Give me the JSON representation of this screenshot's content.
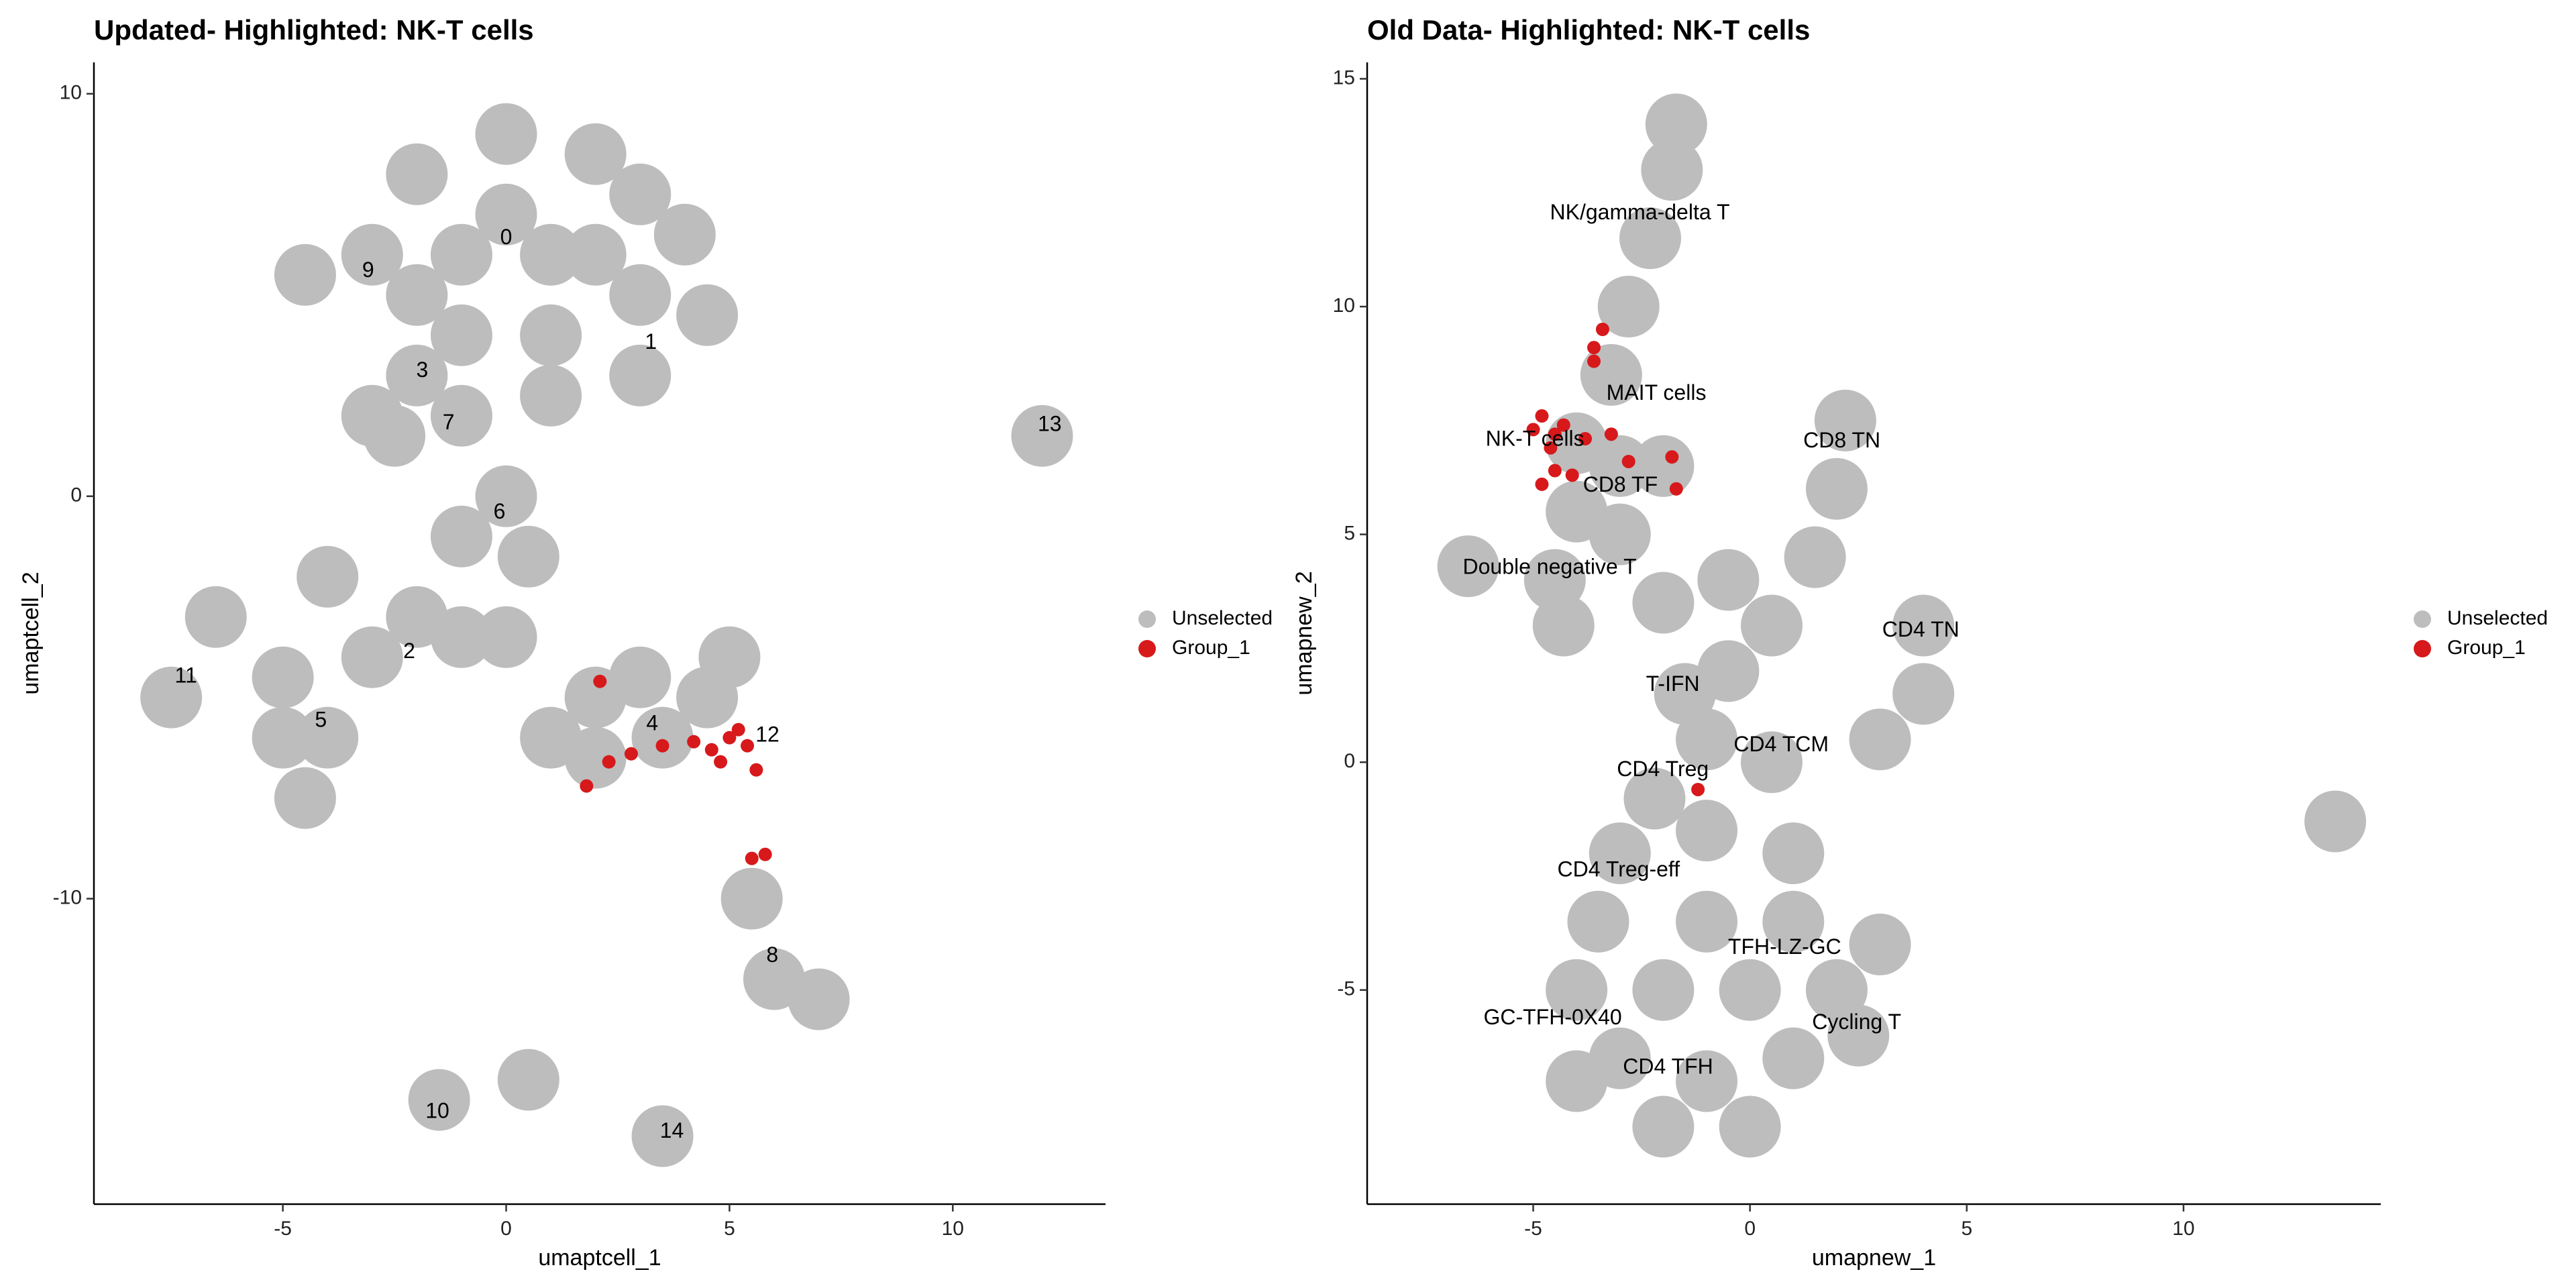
{
  "chart_data": [
    {
      "type": "scatter",
      "title": "Updated- Highlighted: NK-T cells",
      "x_label": "umaptcell_1",
      "y_label": "umaptcell_2",
      "xlim": [
        -9.23,
        13.42
      ],
      "ylim": [
        -17.59,
        10.78
      ],
      "xticks": [
        -5,
        0,
        5,
        10
      ],
      "yticks": [
        10,
        0,
        -10
      ],
      "legend": "right",
      "series": [
        {
          "name": "Unselected",
          "color": "#bdbdbd",
          "x": [
            -2,
            0,
            2,
            4,
            4.5,
            3,
            1,
            -1,
            -2,
            -3,
            -4.5,
            1,
            3,
            -2,
            -1,
            -2.5,
            0,
            -1,
            0.5,
            -2,
            -3,
            -1,
            0,
            -4,
            -4,
            -5,
            -4.5,
            -6.5,
            -7.5,
            2,
            3,
            3.5,
            2,
            4.5,
            5,
            5.5,
            6,
            7,
            -1.5,
            0.5,
            12,
            3.5,
            0,
            2,
            3,
            -1,
            -3,
            1,
            -5,
            1
          ],
          "y": [
            8,
            9,
            8.5,
            6.5,
            4.5,
            3,
            6,
            6,
            5,
            6,
            5.5,
            4,
            5,
            3,
            2,
            1.5,
            0,
            -1,
            -1.5,
            -3,
            -4,
            -3.5,
            -3.5,
            -2,
            -6,
            -6,
            -7.5,
            -3,
            -5,
            -5,
            -4.5,
            -6,
            -6.5,
            -5,
            -4,
            -10,
            -12,
            -12.5,
            -15,
            -14.5,
            1.5,
            -15.9,
            7,
            6,
            7.5,
            4,
            2,
            2.5,
            -4.5,
            -6
          ]
        },
        {
          "name": "Group_1",
          "color": "#d7191c",
          "x": [
            5.4,
            5,
            4.6,
            5.6,
            4.2,
            3.5,
            2.8,
            2.3,
            1.8,
            5.5,
            5.8,
            2.1,
            5.2,
            4.8
          ],
          "y": [
            -6.2,
            -6,
            -6.3,
            -6.8,
            -6.1,
            -6.2,
            -6.4,
            -6.6,
            -7.2,
            -9,
            -8.9,
            -4.6,
            -5.8,
            -6.6
          ]
        }
      ],
      "annotations": [
        {
          "text": "0",
          "x": 0,
          "y": 6.4
        },
        {
          "text": "9",
          "x": -3.09,
          "y": 5.59
        },
        {
          "text": "1",
          "x": 3.24,
          "y": 3.8
        },
        {
          "text": "3",
          "x": -1.88,
          "y": 3.1
        },
        {
          "text": "7",
          "x": -1.29,
          "y": 1.8
        },
        {
          "text": "13",
          "x": 12.17,
          "y": 1.76
        },
        {
          "text": "6",
          "x": -0.15,
          "y": -0.41
        },
        {
          "text": "2",
          "x": -2.17,
          "y": -3.88
        },
        {
          "text": "11",
          "x": -7.17,
          "y": -4.49
        },
        {
          "text": "4",
          "x": 3.27,
          "y": -5.67
        },
        {
          "text": "12",
          "x": 5.85,
          "y": -5.96
        },
        {
          "text": "5",
          "x": -4.15,
          "y": -5.59
        },
        {
          "text": "8",
          "x": 5.96,
          "y": -11.43
        },
        {
          "text": "10",
          "x": -1.54,
          "y": -15.31
        },
        {
          "text": "14",
          "x": 3.71,
          "y": -15.8
        }
      ]
    },
    {
      "type": "scatter",
      "title": "Old Data- Highlighted: NK-T cells",
      "x_label": "umapnew_1",
      "y_label": "umapnew_2",
      "xlim": [
        -8.83,
        14.55
      ],
      "ylim": [
        -9.7,
        15.36
      ],
      "xticks": [
        -5,
        0,
        5,
        10
      ],
      "yticks": [
        15,
        10,
        5,
        0,
        -5
      ],
      "legend": "right",
      "series": [
        {
          "name": "Unselected",
          "color": "#bdbdbd",
          "x": [
            -1.7,
            -1.8,
            -2.3,
            -2.8,
            -3.2,
            -4,
            -3,
            -2,
            -4,
            -3,
            -6.5,
            -4.5,
            -4.3,
            2.2,
            2,
            1.5,
            4,
            4,
            3,
            0.5,
            -0.5,
            -1.5,
            -1,
            0.5,
            -2.2,
            -3,
            -1,
            1,
            -3.5,
            -1,
            1,
            3,
            -4,
            -2,
            0,
            2,
            -3,
            -1,
            1,
            2.5,
            -2,
            0,
            -4,
            -0.5,
            -2,
            13.5
          ],
          "y": [
            14,
            13,
            11.5,
            10,
            8.5,
            7,
            6.5,
            6.5,
            5.5,
            5,
            4.3,
            4,
            3,
            7.5,
            6,
            4.5,
            3,
            1.5,
            0.5,
            3,
            2,
            1.5,
            0.5,
            0,
            -0.8,
            -2,
            -1.5,
            -2,
            -3.5,
            -3.5,
            -3.5,
            -4,
            -5,
            -5,
            -5,
            -5,
            -6.5,
            -7,
            -6.5,
            -6,
            -8,
            -8,
            -7,
            4,
            3.5,
            -1.3
          ]
        },
        {
          "name": "Group_1",
          "color": "#d7191c",
          "x": [
            -4.8,
            -4.5,
            -5,
            -4.6,
            -4.3,
            -3.8,
            -3.2,
            -2.8,
            -1.8,
            -1.7,
            -4.8,
            -3.4,
            -3.6,
            -3.6,
            -1.2,
            -4.5,
            -4.1
          ],
          "y": [
            7.6,
            7.2,
            7.3,
            6.9,
            7.4,
            7.1,
            7.2,
            6.6,
            6.7,
            6,
            6.1,
            9.5,
            9.1,
            8.8,
            -0.6,
            6.4,
            6.3
          ]
        }
      ],
      "annotations": [
        {
          "text": "NK/gamma-delta T",
          "x": -2.54,
          "y": 12.04
        },
        {
          "text": "MAIT cells",
          "x": -2.16,
          "y": 8.08
        },
        {
          "text": "NK-T cells",
          "x": -4.96,
          "y": 7.07
        },
        {
          "text": "CD8 TN",
          "x": 2.12,
          "y": 7.03
        },
        {
          "text": "CD8 TF",
          "x": -2.99,
          "y": 6.06
        },
        {
          "text": "Double negative T",
          "x": -4.62,
          "y": 4.26
        },
        {
          "text": "CD4 TN",
          "x": 3.94,
          "y": 2.88
        },
        {
          "text": "T-IFN",
          "x": -1.78,
          "y": 1.69
        },
        {
          "text": "CD4 TCM",
          "x": 0.72,
          "y": 0.36
        },
        {
          "text": "CD4 Treg",
          "x": -2.01,
          "y": -0.18
        },
        {
          "text": "CD4 Treg-eff",
          "x": -3.03,
          "y": -2.38
        },
        {
          "text": "TFH-LZ-GC",
          "x": 0.8,
          "y": -4.08
        },
        {
          "text": "GC-TFH-0X40",
          "x": -4.55,
          "y": -5.63
        },
        {
          "text": "Cycling T",
          "x": 2.46,
          "y": -5.73
        },
        {
          "text": "CD4 TFH",
          "x": -1.89,
          "y": -6.71
        }
      ]
    }
  ]
}
